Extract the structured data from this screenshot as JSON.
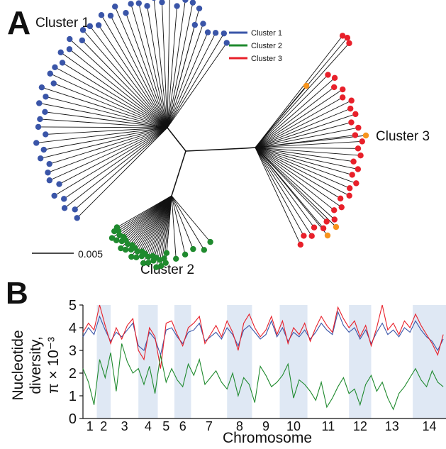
{
  "panel_a": {
    "label": "A",
    "cluster_labels": [
      "Cluster 1",
      "Cluster 2",
      "Cluster 3"
    ],
    "legend": [
      {
        "name": "Cluster 1",
        "color": "#3a55a8"
      },
      {
        "name": "Cluster 2",
        "color": "#1f8a2e"
      },
      {
        "name": "Cluster 3",
        "color": "#e8202a"
      }
    ],
    "scale_bar_label": "0.005",
    "outlier_color": "#f7941d"
  },
  "panel_b": {
    "label": "B"
  },
  "chart_data": {
    "type": "line",
    "xlabel": "Chromosome",
    "ylabel": [
      "Nucleotide",
      "diversity,",
      "π × 10⁻³"
    ],
    "ylim": [
      0,
      5
    ],
    "yticks": [
      "0",
      "1",
      "2",
      "3",
      "4",
      "5"
    ],
    "chromosomes": [
      "1",
      "2",
      "3",
      "4",
      "5",
      "6",
      "7",
      "8",
      "9",
      "10",
      "11",
      "12",
      "13",
      "14"
    ],
    "chromosome_bounds": [
      0,
      0.05,
      0.1,
      0.2,
      0.27,
      0.33,
      0.39,
      0.52,
      0.61,
      0.71,
      0.81,
      0.96,
      1.04,
      1.19,
      1.31
    ],
    "shaded_chromosomes": [
      "2",
      "4",
      "6",
      "8",
      "10",
      "12",
      "14"
    ],
    "series": [
      {
        "name": "Cluster 1",
        "color": "#3a55a8",
        "x": [
          0.0,
          0.02,
          0.04,
          0.06,
          0.08,
          0.1,
          0.12,
          0.14,
          0.16,
          0.18,
          0.2,
          0.22,
          0.24,
          0.26,
          0.28,
          0.3,
          0.32,
          0.34,
          0.36,
          0.38,
          0.4,
          0.42,
          0.44,
          0.46,
          0.48,
          0.5,
          0.52,
          0.54,
          0.56,
          0.58,
          0.6,
          0.62,
          0.64,
          0.66,
          0.68,
          0.7,
          0.72,
          0.74,
          0.76,
          0.78,
          0.8,
          0.82,
          0.84,
          0.86,
          0.88,
          0.9,
          0.92,
          0.94,
          0.96,
          0.98,
          1.0,
          1.02,
          1.04,
          1.06,
          1.08,
          1.1,
          1.12,
          1.14,
          1.16,
          1.18,
          1.2,
          1.22,
          1.24,
          1.26,
          1.28,
          1.3
        ],
        "y": [
          3.6,
          4.0,
          3.7,
          4.5,
          3.9,
          3.4,
          3.8,
          3.6,
          3.9,
          4.2,
          3.2,
          3.0,
          3.8,
          3.5,
          2.8,
          3.9,
          4.0,
          3.6,
          3.3,
          3.8,
          3.9,
          4.2,
          3.4,
          3.6,
          3.8,
          3.5,
          4.0,
          3.7,
          3.2,
          3.9,
          4.1,
          3.8,
          3.5,
          3.7,
          4.3,
          3.6,
          4.0,
          3.4,
          3.8,
          3.6,
          3.9,
          3.5,
          3.8,
          4.2,
          3.9,
          3.7,
          4.7,
          4.1,
          3.8,
          4.0,
          3.5,
          3.9,
          3.3,
          3.8,
          4.2,
          3.7,
          3.9,
          3.6,
          4.0,
          3.8,
          4.3,
          3.9,
          3.6,
          3.4,
          3.0,
          3.5
        ]
      },
      {
        "name": "Cluster 3",
        "color": "#e8202a",
        "x": [
          0.0,
          0.02,
          0.04,
          0.06,
          0.08,
          0.1,
          0.12,
          0.14,
          0.16,
          0.18,
          0.2,
          0.22,
          0.24,
          0.26,
          0.28,
          0.3,
          0.32,
          0.34,
          0.36,
          0.38,
          0.4,
          0.42,
          0.44,
          0.46,
          0.48,
          0.5,
          0.52,
          0.54,
          0.56,
          0.58,
          0.6,
          0.62,
          0.64,
          0.66,
          0.68,
          0.7,
          0.72,
          0.74,
          0.76,
          0.78,
          0.8,
          0.82,
          0.84,
          0.86,
          0.88,
          0.9,
          0.92,
          0.94,
          0.96,
          0.98,
          1.0,
          1.02,
          1.04,
          1.06,
          1.08,
          1.1,
          1.12,
          1.14,
          1.16,
          1.18,
          1.2,
          1.22,
          1.24,
          1.26,
          1.28,
          1.3
        ],
        "y": [
          3.8,
          4.2,
          3.9,
          5.0,
          4.1,
          3.3,
          4.0,
          3.5,
          4.1,
          4.4,
          3.0,
          2.6,
          4.0,
          3.6,
          2.2,
          4.2,
          4.3,
          3.7,
          3.2,
          4.0,
          4.2,
          4.5,
          3.3,
          3.7,
          4.1,
          3.6,
          4.3,
          3.8,
          3.0,
          4.2,
          4.6,
          4.0,
          3.6,
          3.9,
          4.5,
          3.7,
          4.3,
          3.3,
          4.0,
          3.7,
          4.2,
          3.4,
          4.0,
          4.5,
          4.1,
          3.8,
          4.9,
          4.4,
          4.0,
          4.3,
          3.6,
          4.1,
          3.2,
          4.0,
          5.0,
          3.9,
          4.2,
          3.7,
          4.3,
          4.0,
          4.6,
          4.1,
          3.7,
          3.3,
          2.8,
          3.7
        ]
      },
      {
        "name": "Cluster 2",
        "color": "#1f8a2e",
        "x": [
          0.0,
          0.02,
          0.04,
          0.06,
          0.08,
          0.1,
          0.12,
          0.14,
          0.16,
          0.18,
          0.2,
          0.22,
          0.24,
          0.26,
          0.28,
          0.3,
          0.32,
          0.34,
          0.36,
          0.38,
          0.4,
          0.42,
          0.44,
          0.46,
          0.48,
          0.5,
          0.52,
          0.54,
          0.56,
          0.58,
          0.6,
          0.62,
          0.64,
          0.66,
          0.68,
          0.7,
          0.72,
          0.74,
          0.76,
          0.78,
          0.8,
          0.82,
          0.84,
          0.86,
          0.88,
          0.9,
          0.92,
          0.94,
          0.96,
          0.98,
          1.0,
          1.02,
          1.04,
          1.06,
          1.08,
          1.1,
          1.12,
          1.14,
          1.16,
          1.18,
          1.2,
          1.22,
          1.24,
          1.26,
          1.28,
          1.3
        ],
        "y": [
          2.2,
          1.6,
          0.6,
          2.6,
          1.8,
          2.9,
          1.2,
          3.3,
          2.5,
          2.0,
          2.2,
          1.5,
          2.3,
          1.1,
          2.8,
          1.6,
          2.2,
          1.7,
          1.4,
          2.4,
          1.9,
          2.6,
          1.5,
          1.8,
          2.1,
          1.6,
          1.3,
          2.0,
          1.0,
          1.8,
          1.5,
          0.7,
          2.3,
          1.9,
          1.4,
          1.6,
          1.9,
          2.4,
          0.9,
          1.7,
          1.5,
          1.2,
          0.8,
          1.6,
          0.5,
          0.9,
          1.4,
          1.8,
          1.1,
          1.3,
          0.6,
          1.5,
          1.9,
          1.2,
          1.6,
          0.9,
          0.4,
          1.1,
          1.4,
          1.8,
          2.2,
          1.7,
          1.4,
          2.1,
          1.6,
          1.4
        ]
      }
    ]
  }
}
